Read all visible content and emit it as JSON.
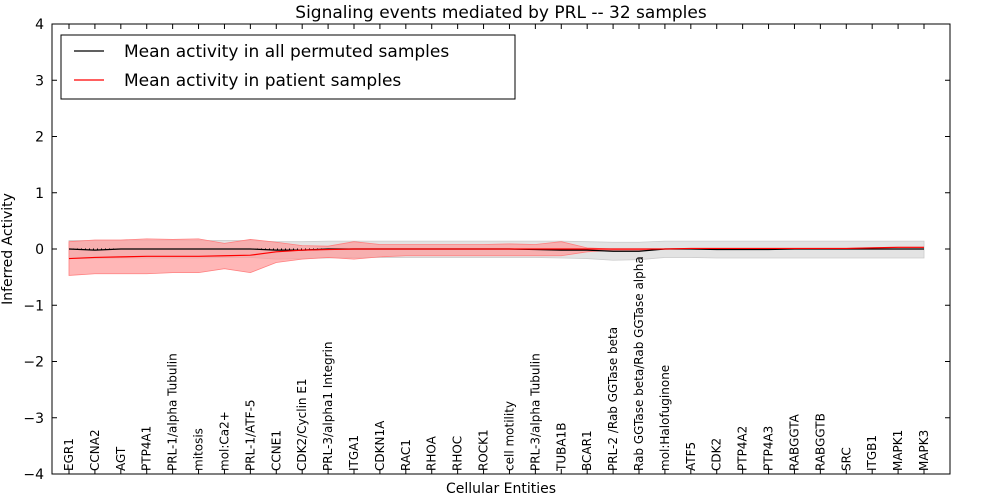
{
  "chart_data": {
    "type": "line",
    "title": "Signaling events mediated by PRL -- 32 samples",
    "xlabel": "Cellular Entities",
    "ylabel": "Inferred Activity",
    "ylim": [
      -4,
      4
    ],
    "yticks": [
      -4,
      -3,
      -2,
      -1,
      0,
      1,
      2,
      3,
      4
    ],
    "ytick_labels": [
      "−4",
      "−3",
      "−2",
      "−1",
      "0",
      "1",
      "2",
      "3",
      "4"
    ],
    "grid": false,
    "legend_position": "top-left",
    "categories": [
      "EGR1",
      "CCNA2",
      "AGT",
      "PTP4A1",
      "PRL-1/alpha Tubulin",
      "mitosis",
      "mol:Ca2+",
      "PRL-1/ATF-5",
      "CCNE1",
      "CDK2/Cyclin E1",
      "PRL-3/alpha1 Integrin",
      "ITGA1",
      "CDKN1A",
      "RAC1",
      "RHOA",
      "RHOC",
      "ROCK1",
      "cell motility",
      "PRL-3/alpha Tubulin",
      "TUBA1B",
      "BCAR1",
      "PRL-2 /Rab GGTase beta",
      "Rab GGTase beta/Rab GGTase alpha",
      "mol:Halofuginone",
      "ATF5",
      "CDK2",
      "PTP4A2",
      "PTP4A3",
      "RABGGTA",
      "RABGGTB",
      "SRC",
      "ITGB1",
      "MAPK1",
      "MAPK3"
    ],
    "series": [
      {
        "name": "Mean activity in all permuted samples",
        "color": "#000000",
        "values": [
          0.0,
          -0.02,
          0.0,
          0.0,
          0.0,
          0.0,
          0.0,
          0.0,
          -0.02,
          -0.02,
          0.0,
          0.0,
          0.0,
          0.0,
          0.0,
          0.0,
          0.0,
          0.0,
          -0.01,
          -0.02,
          -0.02,
          -0.04,
          -0.04,
          0.0,
          0.0,
          -0.01,
          -0.01,
          -0.01,
          0.0,
          0.0,
          0.0,
          0.0,
          0.0,
          0.0
        ],
        "band_lower": [
          -0.17,
          -0.17,
          -0.16,
          -0.16,
          -0.16,
          -0.16,
          -0.15,
          -0.15,
          -0.18,
          -0.17,
          -0.16,
          -0.15,
          -0.15,
          -0.15,
          -0.15,
          -0.15,
          -0.15,
          -0.15,
          -0.15,
          -0.16,
          -0.17,
          -0.2,
          -0.19,
          -0.15,
          -0.15,
          -0.16,
          -0.16,
          -0.16,
          -0.16,
          -0.16,
          -0.16,
          -0.16,
          -0.16,
          -0.16
        ],
        "band_upper": [
          0.15,
          0.15,
          0.15,
          0.15,
          0.15,
          0.15,
          0.15,
          0.15,
          0.13,
          0.13,
          0.14,
          0.14,
          0.14,
          0.14,
          0.14,
          0.14,
          0.14,
          0.14,
          0.14,
          0.14,
          0.13,
          0.12,
          0.12,
          0.14,
          0.14,
          0.14,
          0.14,
          0.14,
          0.14,
          0.14,
          0.14,
          0.14,
          0.14,
          0.14
        ]
      },
      {
        "name": "Mean activity in patient samples",
        "color": "#ff0000",
        "values": [
          -0.17,
          -0.15,
          -0.14,
          -0.13,
          -0.13,
          -0.13,
          -0.12,
          -0.11,
          -0.05,
          -0.02,
          -0.01,
          0.0,
          0.0,
          0.0,
          0.0,
          0.0,
          0.0,
          0.0,
          0.0,
          0.0,
          0.0,
          0.0,
          0.0,
          0.0,
          0.01,
          0.01,
          0.01,
          0.01,
          0.01,
          0.01,
          0.01,
          0.02,
          0.03,
          0.03
        ],
        "band_lower": [
          -0.47,
          -0.44,
          -0.44,
          -0.44,
          -0.42,
          -0.42,
          -0.35,
          -0.42,
          -0.24,
          -0.18,
          -0.15,
          -0.18,
          -0.14,
          -0.12,
          -0.12,
          -0.12,
          -0.12,
          -0.12,
          -0.12,
          -0.12,
          -0.05,
          -0.02,
          -0.02,
          0.0,
          0.01,
          0.01,
          0.01,
          0.01,
          0.01,
          0.01,
          0.01,
          0.02,
          0.03,
          0.03
        ],
        "band_upper": [
          0.13,
          0.16,
          0.16,
          0.18,
          0.17,
          0.18,
          0.1,
          0.17,
          0.12,
          0.06,
          0.05,
          0.13,
          0.08,
          0.08,
          0.08,
          0.08,
          0.08,
          0.09,
          0.08,
          0.13,
          0.02,
          0.0,
          0.0,
          0.0,
          0.01,
          0.01,
          0.01,
          0.01,
          0.01,
          0.01,
          0.01,
          0.02,
          0.03,
          0.03
        ]
      }
    ],
    "band_colors": {
      "permuted": "#d9d9d9",
      "patient": "#ff9999"
    }
  }
}
